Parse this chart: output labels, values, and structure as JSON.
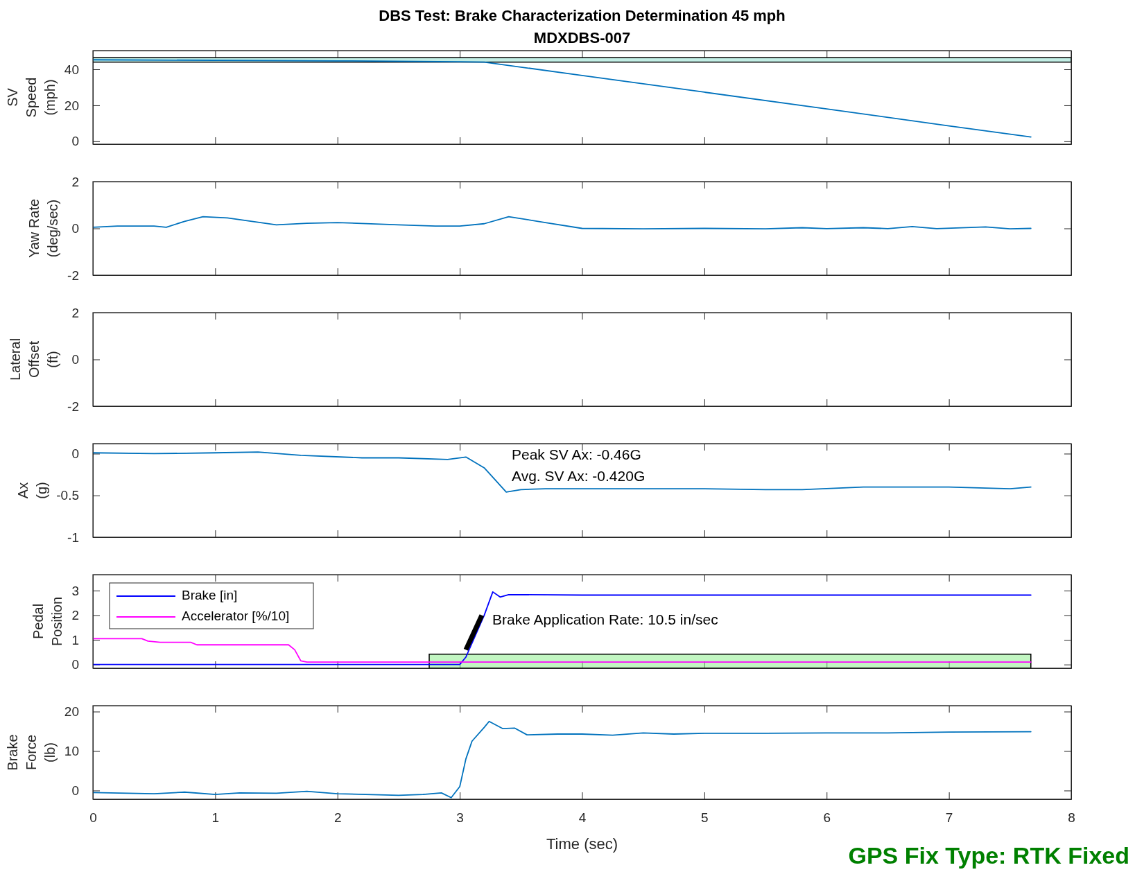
{
  "chart_data": [
    {
      "type": "line",
      "title": "DBS Test: Brake Characterization Determination 45 mph",
      "subtitle": "MDXDBS-007",
      "ylabel": "SV\nSpeed\n(mph)",
      "xlim": [
        0,
        8
      ],
      "xticks": [
        0,
        1,
        2,
        3,
        4,
        5,
        6,
        7,
        8
      ],
      "ylim": [
        -1.6,
        50.4
      ],
      "yticks": [
        0,
        20,
        40
      ],
      "tick_labels": "y",
      "series": [
        {
          "color": "#0072bd",
          "x": [
            0,
            1,
            2,
            3,
            3.2,
            4,
            5,
            6,
            7,
            7.67
          ],
          "values": [
            45.3,
            45,
            44.7,
            44.2,
            44,
            36.6,
            27.3,
            18,
            8.6,
            2.4
          ]
        }
      ],
      "bands": [
        {
          "axis": "y",
          "from": 44,
          "to": 46.5,
          "color": "#8fe0d0"
        }
      ]
    },
    {
      "type": "line",
      "ylabel": "Yaw Rate\n(deg/sec)",
      "xlim": [
        0,
        8
      ],
      "xticks": [
        0,
        1,
        2,
        3,
        4,
        5,
        6,
        7,
        8
      ],
      "ylim": [
        -2,
        2
      ],
      "yticks": [
        -2,
        0,
        2
      ],
      "tick_labels": "y",
      "series": [
        {
          "color": "#0072bd",
          "x": [
            0,
            0.2,
            0.5,
            0.6,
            0.75,
            0.9,
            1.1,
            1.3,
            1.5,
            1.75,
            2,
            2.5,
            2.8,
            3,
            3.2,
            3.4,
            3.7,
            4,
            4.5,
            5,
            5.5,
            5.8,
            6,
            6.3,
            6.5,
            6.7,
            6.9,
            7.3,
            7.5,
            7.67
          ],
          "values": [
            0.05,
            0.1,
            0.1,
            0.05,
            0.3,
            0.5,
            0.45,
            0.3,
            0.15,
            0.22,
            0.25,
            0.15,
            0.1,
            0.1,
            0.2,
            0.5,
            0.25,
            0,
            -0.02,
            0,
            -0.02,
            0.03,
            -0.01,
            0.03,
            -0.01,
            0.08,
            -0.01,
            0.06,
            -0.02,
            0
          ]
        }
      ]
    },
    {
      "type": "line",
      "ylabel": "Lateral\nOffset\n(ft)",
      "xlim": [
        0,
        8
      ],
      "xticks": [
        0,
        1,
        2,
        3,
        4,
        5,
        6,
        7,
        8
      ],
      "ylim": [
        -2,
        2
      ],
      "yticks": [
        -2,
        0,
        2
      ],
      "tick_labels": "y"
    },
    {
      "type": "line",
      "ylabel": "Ax\n(g)",
      "xlim": [
        0,
        8
      ],
      "xticks": [
        0,
        1,
        2,
        3,
        4,
        5,
        6,
        7,
        8
      ],
      "ylim": [
        -1,
        0.12
      ],
      "yticks": [
        -1,
        -0.5,
        0
      ],
      "tick_labels": "y",
      "series": [
        {
          "color": "#0072bd",
          "x": [
            0,
            0.5,
            1,
            1.35,
            1.7,
            2.2,
            2.5,
            2.9,
            3.05,
            3.2,
            3.38,
            3.5,
            3.7,
            4,
            5,
            5.5,
            5.8,
            6.3,
            7,
            7.5,
            7.67
          ],
          "values": [
            0.01,
            0,
            0.01,
            0.02,
            -0.02,
            -0.05,
            -0.05,
            -0.07,
            -0.04,
            -0.17,
            -0.46,
            -0.43,
            -0.42,
            -0.42,
            -0.42,
            -0.43,
            -0.43,
            -0.4,
            -0.4,
            -0.42,
            -0.4
          ]
        }
      ],
      "annotations": [
        "Peak SV Ax: -0.46G",
        "Avg. SV Ax: -0.420G"
      ]
    },
    {
      "type": "line",
      "ylabel": "Pedal\nPosition",
      "xlim": [
        0,
        8
      ],
      "xticks": [
        0,
        1,
        2,
        3,
        4,
        5,
        6,
        7,
        8
      ],
      "ylim": [
        -0.15,
        3.65
      ],
      "yticks": [
        0,
        1,
        2,
        3
      ],
      "tick_labels": "y",
      "legend": "top left",
      "series": [
        {
          "name": "Brake [in]",
          "color": "#0000ff",
          "x": [
            0,
            1,
            2,
            3,
            3.05,
            3.2,
            3.27,
            3.33,
            3.4,
            4,
            5,
            6,
            7,
            7.67
          ],
          "values": [
            0,
            0,
            0,
            0,
            0.3,
            2.0,
            2.95,
            2.74,
            2.84,
            2.82,
            2.82,
            2.82,
            2.82,
            2.82
          ]
        },
        {
          "name": "Accelerator [%/10]",
          "color": "#ff00ff",
          "x": [
            0,
            0.4,
            0.45,
            0.55,
            0.8,
            0.85,
            1.6,
            1.65,
            1.7,
            1.75,
            3,
            4,
            5,
            6,
            7,
            7.67
          ],
          "values": [
            1.05,
            1.05,
            0.95,
            0.9,
            0.9,
            0.8,
            0.8,
            0.6,
            0.15,
            0.1,
            0.1,
            0.1,
            0.1,
            0.1,
            0.1,
            0.1
          ]
        },
        {
          "color": "#000000",
          "x": [
            3.05,
            3.18
          ],
          "values": [
            0.6,
            2.0
          ]
        }
      ],
      "bands": [
        {
          "axis": "x",
          "from": 2.75,
          "to": 7.67,
          "color": "#90ee90"
        }
      ],
      "annotations": [
        "Brake Application Rate: 10.5 in/sec"
      ]
    },
    {
      "type": "line",
      "ylabel": "Brake\nForce\n(lb)",
      "xlabel": "Time (sec)",
      "xlim": [
        0,
        8
      ],
      "xticks": [
        0,
        1,
        2,
        3,
        4,
        5,
        6,
        7,
        8
      ],
      "ylim": [
        -2.2,
        21.5
      ],
      "yticks": [
        0,
        10,
        20
      ],
      "series": [
        {
          "color": "#0072bd",
          "x": [
            0,
            0.5,
            0.75,
            1,
            1.2,
            1.5,
            1.75,
            2,
            2.5,
            2.7,
            2.85,
            2.93,
            3,
            3.05,
            3.1,
            3.2,
            3.24,
            3.35,
            3.45,
            3.55,
            3.8,
            4,
            4.25,
            4.5,
            4.75,
            5,
            5.5,
            6,
            6.5,
            7,
            7.67
          ],
          "values": [
            -0.5,
            -0.8,
            -0.4,
            -1,
            -0.6,
            -0.7,
            -0.2,
            -0.8,
            -1.2,
            -1,
            -0.6,
            -1.8,
            1,
            8,
            12.5,
            16,
            17.5,
            15.7,
            15.8,
            14.1,
            14.3,
            14.3,
            14,
            14.6,
            14.3,
            14.5,
            14.5,
            14.6,
            14.6,
            14.8,
            14.9
          ]
        }
      ],
      "annotations": [
        "GPS Fix Type: RTK Fixed"
      ]
    }
  ]
}
